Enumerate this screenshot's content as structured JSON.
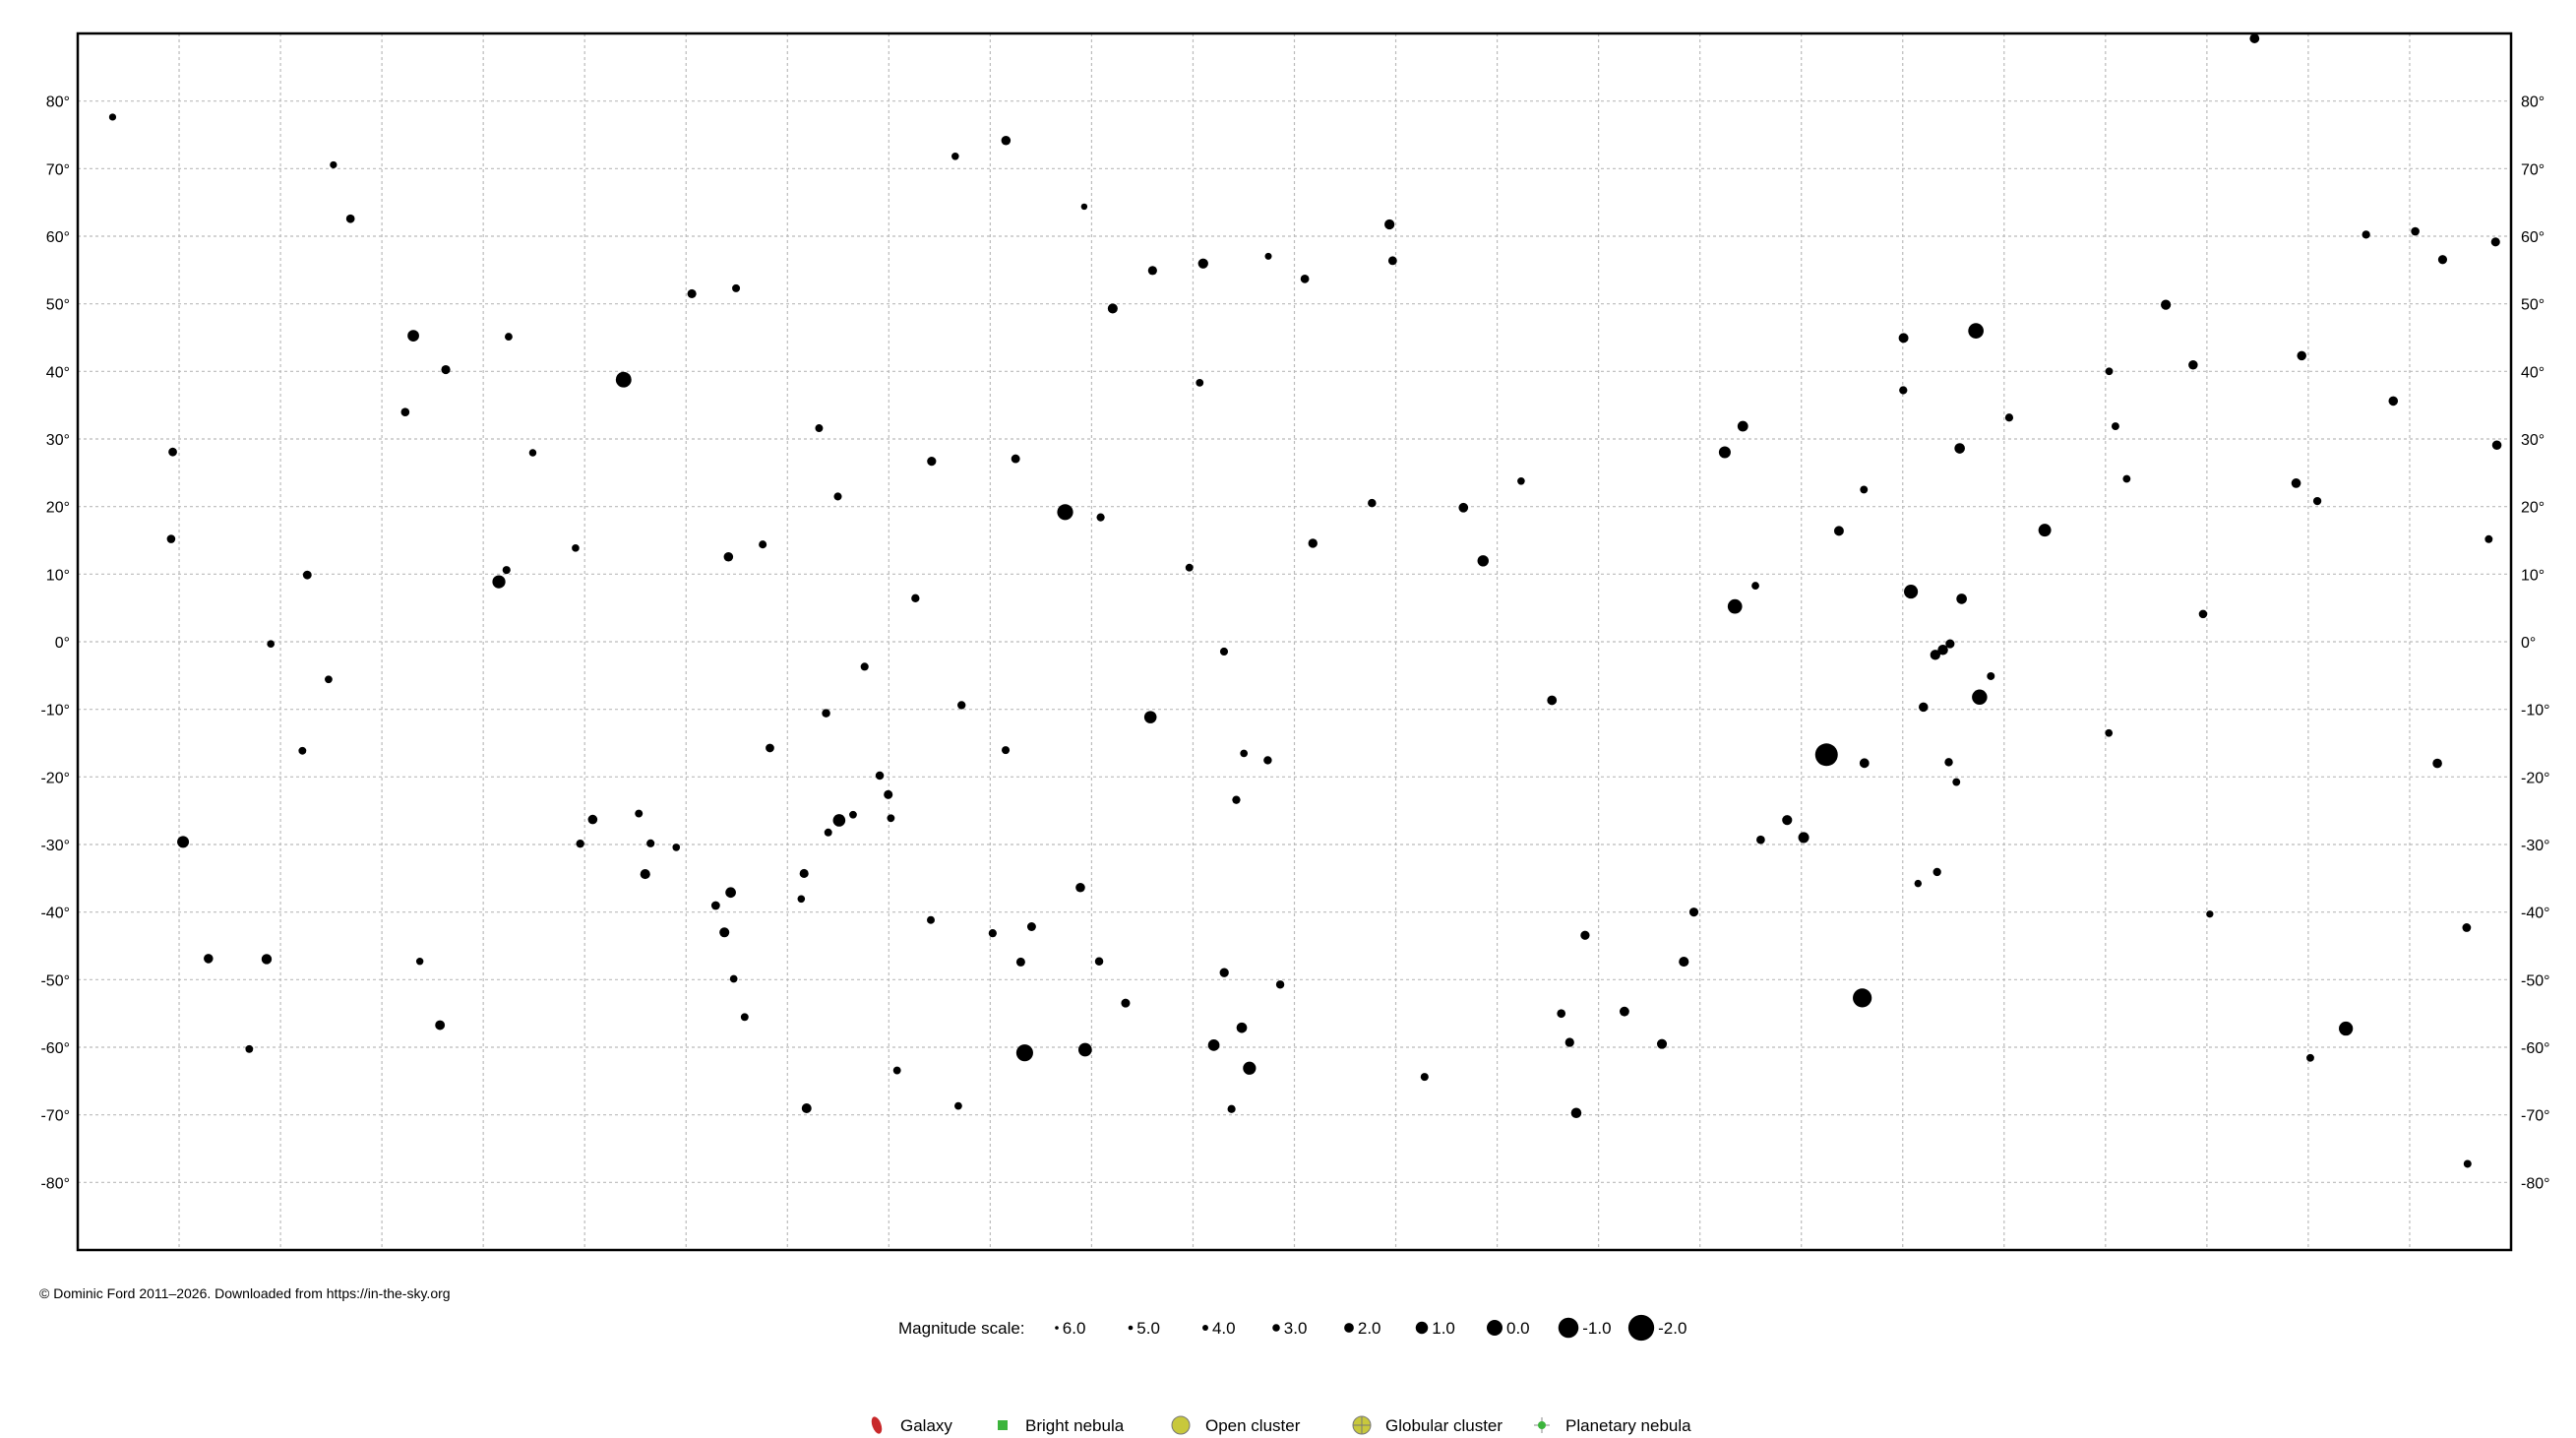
{
  "chart_data": {
    "type": "scatter",
    "title": "",
    "xlabel": "",
    "ylabel": "",
    "x_quantity": "right ascension (hours), increasing to the left",
    "xlim": [
      24,
      0
    ],
    "ylim": [
      -90,
      90
    ],
    "grid": true,
    "x_grid_step_hours": 1,
    "y_grid_step_deg": 10,
    "y_ticks": [
      "80°",
      "70°",
      "60°",
      "50°",
      "40°",
      "30°",
      "20°",
      "10°",
      "0°",
      "-10°",
      "-20°",
      "-30°",
      "-40°",
      "-50°",
      "-60°",
      "-70°",
      "-80°"
    ],
    "y_tick_values": [
      80,
      70,
      60,
      50,
      40,
      30,
      20,
      10,
      0,
      -10,
      -20,
      -30,
      -40,
      -50,
      -60,
      -70,
      -80
    ],
    "y_ticks_both_sides": true,
    "marker_color": "#000000",
    "marker_size_encodes": "magnitude",
    "stars_columns": [
      "ra_hours",
      "dec_deg",
      "magnitude"
    ],
    "stars": [
      [
        6.752,
        -16.72,
        -1.46
      ],
      [
        6.399,
        -52.7,
        -0.74
      ],
      [
        14.66,
        -60.83,
        -0.27
      ],
      [
        14.261,
        19.18,
        -0.05
      ],
      [
        18.616,
        38.78,
        0.03
      ],
      [
        5.278,
        46.0,
        0.08
      ],
      [
        5.242,
        -8.2,
        0.13
      ],
      [
        7.655,
        5.22,
        0.34
      ],
      [
        1.629,
        -57.24,
        0.46
      ],
      [
        5.919,
        7.41,
        0.5
      ],
      [
        14.064,
        -60.37,
        0.61
      ],
      [
        19.846,
        8.87,
        0.76
      ],
      [
        12.443,
        -63.1,
        0.77
      ],
      [
        4.599,
        16.51,
        0.86
      ],
      [
        16.49,
        -26.43,
        0.96
      ],
      [
        13.42,
        -11.16,
        0.97
      ],
      [
        7.755,
        28.03,
        1.14
      ],
      [
        22.961,
        -29.62,
        1.16
      ],
      [
        20.69,
        45.28,
        1.25
      ],
      [
        12.795,
        -59.69,
        1.25
      ],
      [
        10.139,
        11.97,
        1.35
      ],
      [
        6.977,
        -28.97,
        1.5
      ],
      [
        7.577,
        31.89,
        1.58
      ],
      [
        12.519,
        -57.11,
        1.63
      ],
      [
        17.56,
        -37.1,
        1.62
      ],
      [
        5.419,
        6.35,
        1.64
      ],
      [
        5.438,
        28.61,
        1.65
      ],
      [
        9.22,
        -69.72,
        1.67
      ],
      [
        5.604,
        -1.2,
        1.69
      ],
      [
        22.137,
        -46.96,
        1.74
      ],
      [
        5.679,
        -1.94,
        1.77
      ],
      [
        12.9,
        55.96,
        1.77
      ],
      [
        11.062,
        61.75,
        1.79
      ],
      [
        3.405,
        49.86,
        1.79
      ],
      [
        7.14,
        -26.39,
        1.83
      ],
      [
        17.622,
        -43.0,
        1.86
      ],
      [
        18.403,
        -34.38,
        1.85
      ],
      [
        8.375,
        -59.51,
        1.86
      ],
      [
        13.792,
        49.31,
        1.86
      ],
      [
        5.992,
        44.95,
        1.9
      ],
      [
        16.811,
        -69.03,
        1.91
      ],
      [
        6.629,
        16.4,
        1.92
      ],
      [
        20.427,
        -56.73,
        1.94
      ],
      [
        8.745,
        -54.71,
        1.96
      ],
      [
        6.378,
        -17.96,
        1.98
      ],
      [
        9.46,
        -8.66,
        1.98
      ],
      [
        2.53,
        89.26,
        1.98
      ],
      [
        2.12,
        23.46,
        2.0
      ],
      [
        10.333,
        19.84,
        2.01
      ],
      [
        0.727,
        -17.99,
        2.04
      ],
      [
        18.921,
        -26.3,
        2.05
      ],
      [
        14.111,
        -36.37,
        2.06
      ],
      [
        1.162,
        35.62,
        2.07
      ],
      [
        0.14,
        29.09,
        2.06
      ],
      [
        17.582,
        12.56,
        2.07
      ],
      [
        14.845,
        74.16,
        2.08
      ],
      [
        5.796,
        -9.67,
        2.09
      ],
      [
        11.818,
        14.57,
        2.14
      ],
      [
        3.136,
        40.96,
        2.1
      ],
      [
        22.711,
        -46.88,
        2.07
      ],
      [
        12.692,
        -48.96,
        2.2
      ],
      [
        9.285,
        -59.28,
        2.21
      ],
      [
        9.133,
        -43.43,
        2.21
      ],
      [
        15.578,
        26.71,
        2.22
      ],
      [
        13.399,
        54.93,
        2.23
      ],
      [
        20.37,
        40.26,
        2.23
      ],
      [
        0.675,
        56.54,
        2.24
      ],
      [
        17.943,
        51.49,
        2.24
      ],
      [
        5.533,
        -0.3,
        2.25
      ],
      [
        0.153,
        59.15,
        2.28
      ],
      [
        16.006,
        -22.62,
        2.29
      ],
      [
        16.836,
        -34.29,
        2.29
      ],
      [
        11.031,
        56.38,
        2.37
      ],
      [
        14.75,
        27.07,
        2.37
      ],
      [
        21.736,
        9.88,
        2.39
      ],
      [
        0.438,
        -42.3,
        2.4
      ],
      [
        11.897,
        53.69,
        2.44
      ],
      [
        17.173,
        -15.72,
        2.43
      ],
      [
        23.063,
        28.08,
        2.42
      ],
      [
        21.31,
        62.59,
        2.45
      ],
      [
        7.401,
        -29.3,
        2.45
      ],
      [
        9.368,
        -55.01,
        2.47
      ],
      [
        0.945,
        60.72,
        2.47
      ],
      [
        23.079,
        15.21,
        2.48
      ],
      [
        3.038,
        4.09,
        2.53
      ],
      [
        11.235,
        20.52,
        2.56
      ],
      [
        16.09,
        -19.8,
        2.56
      ],
      [
        5.546,
        -17.82,
        2.58
      ],
      [
        12.263,
        -17.54,
        2.59
      ],
      [
        15.283,
        -9.38,
        2.61
      ],
      [
        15.738,
        6.43,
        2.63
      ],
      [
        1.911,
        20.81,
        2.64
      ],
      [
        5.661,
        -34.07,
        2.65
      ],
      [
        12.573,
        -23.4,
        2.65
      ],
      [
        1.43,
        60.24,
        2.66
      ],
      [
        13.911,
        18.4,
        2.68
      ],
      [
        4.95,
        33.17,
        2.69
      ],
      [
        16.503,
        21.49,
        2.77
      ],
      [
        17.244,
        14.39,
        2.78
      ],
      [
        14.848,
        -16.04,
        2.75
      ],
      [
        3.791,
        24.1,
        2.87
      ],
      [
        12.498,
        -16.52,
        2.95
      ],
      [
        21.526,
        -5.57,
        2.9
      ],
      [
        22.096,
        -0.32,
        2.95
      ],
      [
        21.784,
        -16.13,
        2.85
      ],
      [
        13.036,
        10.96,
        2.85
      ],
      [
        19.771,
        10.61,
        2.72
      ],
      [
        19.512,
        27.96,
        3.05
      ],
      [
        12.934,
        38.32,
        2.9
      ],
      [
        2.065,
        42.33,
        2.1
      ],
      [
        18.097,
        -30.42,
        2.98
      ],
      [
        18.35,
        -29.83,
        2.7
      ],
      [
        19.044,
        -29.88,
        2.6
      ],
      [
        20.77,
        33.97,
        2.48
      ],
      [
        19.75,
        45.13,
        2.87
      ],
      [
        17.507,
        52.3,
        2.79
      ],
      [
        14.073,
        64.38,
        3.65
      ],
      [
        8.06,
        -40.0,
        2.25
      ],
      [
        12.14,
        -50.72,
        2.6
      ],
      [
        13.665,
        -53.47,
        2.3
      ],
      [
        14.592,
        -42.16,
        2.33
      ],
      [
        14.699,
        -47.39,
        2.3
      ],
      [
        1.98,
        -61.57,
        2.86
      ],
      [
        0.429,
        -77.25,
        2.8
      ],
      [
        8.159,
        -47.34,
        1.83
      ],
      [
        10.716,
        -64.39,
        2.76
      ],
      [
        5.849,
        -35.77,
        3.1
      ],
      [
        17.708,
        -39.03,
        2.39
      ],
      [
        16.598,
        -28.22,
        2.82
      ],
      [
        16.353,
        -25.59,
        2.9
      ],
      [
        15.98,
        -26.11,
        2.89
      ],
      [
        16.864,
        -38.05,
        3.0
      ],
      [
        16.619,
        -10.57,
        2.56
      ],
      [
        16.239,
        -3.69,
        2.74
      ],
      [
        5.995,
        37.21,
        2.65
      ],
      [
        6.383,
        22.51,
        2.87
      ],
      [
        5.131,
        -5.09,
        2.79
      ],
      [
        3.967,
        -13.51,
        2.95
      ],
      [
        5.471,
        -20.76,
        2.84
      ],
      [
        0.22,
        15.18,
        2.83
      ],
      [
        3.902,
        31.88,
        2.85
      ],
      [
        3.964,
        40.01,
        2.9
      ],
      [
        12.257,
        57.03,
        3.3
      ],
      [
        15.345,
        71.83,
        3.0
      ],
      [
        16.688,
        31.6,
        2.81
      ],
      [
        9.764,
        23.77,
        2.98
      ],
      [
        12.694,
        -1.45,
        2.74
      ],
      [
        19.09,
        13.86,
        2.99
      ],
      [
        18.466,
        -25.42,
        2.81
      ],
      [
        21.478,
        70.56,
        3.2
      ],
      [
        23.656,
        77.63,
        3.2
      ],
      [
        22.308,
        -60.26,
        2.86
      ],
      [
        12.62,
        -69.14,
        2.7
      ],
      [
        15.919,
        -63.43,
        2.85
      ],
      [
        15.315,
        -68.68,
        2.9
      ],
      [
        17.53,
        -49.88,
        2.95
      ],
      [
        17.422,
        -55.53,
        2.85
      ],
      [
        13.926,
        -47.29,
        2.55
      ],
      [
        15.586,
        -41.17,
        2.8
      ],
      [
        14.976,
        -43.13,
        2.68
      ],
      [
        20.626,
        -47.29,
        3.1
      ],
      [
        7.453,
        8.29,
        2.9
      ],
      [
        2.971,
        -40.3,
        3.2
      ]
    ]
  },
  "magnitude_legend": {
    "label": "Magnitude scale:",
    "items": [
      {
        "mag": 6.0,
        "label": "6.0"
      },
      {
        "mag": 5.0,
        "label": "5.0"
      },
      {
        "mag": 4.0,
        "label": "4.0"
      },
      {
        "mag": 3.0,
        "label": "3.0"
      },
      {
        "mag": 2.0,
        "label": "2.0"
      },
      {
        "mag": 1.0,
        "label": "1.0"
      },
      {
        "mag": 0.0,
        "label": "0.0"
      },
      {
        "mag": -1.0,
        "label": "-1.0"
      },
      {
        "mag": -2.0,
        "label": "-2.0"
      }
    ]
  },
  "object_legend": [
    {
      "label": "Galaxy",
      "icon": "galaxy-ellipse",
      "color": "#c8282a"
    },
    {
      "label": "Bright nebula",
      "icon": "nebula-square",
      "color": "#3cb43c"
    },
    {
      "label": "Open cluster",
      "icon": "open-cluster-circle",
      "color": "#c8c83c"
    },
    {
      "label": "Globular cluster",
      "icon": "globular-cluster-crossed-circle",
      "color": "#c8c83c"
    },
    {
      "label": "Planetary nebula",
      "icon": "planetary-nebula-dot-cross",
      "color": "#3cb43c"
    }
  ],
  "copyright": "© Dominic Ford 2011–2026. Downloaded from https://in-the-sky.org"
}
